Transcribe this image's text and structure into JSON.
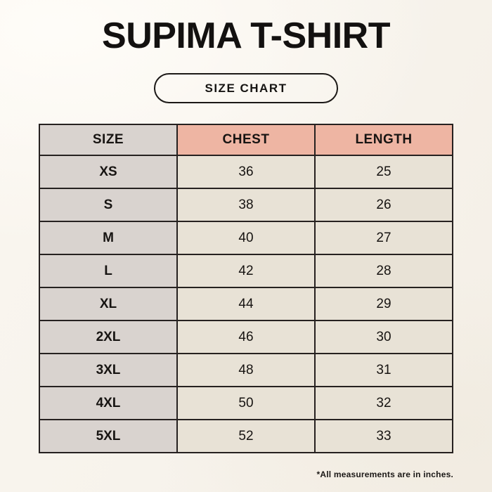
{
  "page": {
    "title": "SUPIMA T-SHIRT",
    "badge_label": "SIZE CHART",
    "footnote": "*All measurements are in inches."
  },
  "colors": {
    "page_bg": "#f7f3ec",
    "header_label_bg": "#d9d3cf",
    "header_accent_bg": "#eeb5a3",
    "cell_label_bg": "#d9d3cf",
    "cell_value_bg": "#e8e2d6",
    "table_border": "#262120",
    "text": "#171412"
  },
  "chart_data": {
    "type": "table",
    "title": "SUPIMA T-SHIRT",
    "subtitle": "SIZE CHART",
    "columns": [
      "SIZE",
      "CHEST",
      "LENGTH"
    ],
    "rows": [
      [
        "XS",
        36,
        25
      ],
      [
        "S",
        38,
        26
      ],
      [
        "M",
        40,
        27
      ],
      [
        "L",
        42,
        28
      ],
      [
        "XL",
        44,
        29
      ],
      [
        "2XL",
        46,
        30
      ],
      [
        "3XL",
        48,
        31
      ],
      [
        "4XL",
        50,
        32
      ],
      [
        "5XL",
        52,
        33
      ]
    ],
    "note": "*All measurements are in inches.",
    "units": "inches"
  }
}
